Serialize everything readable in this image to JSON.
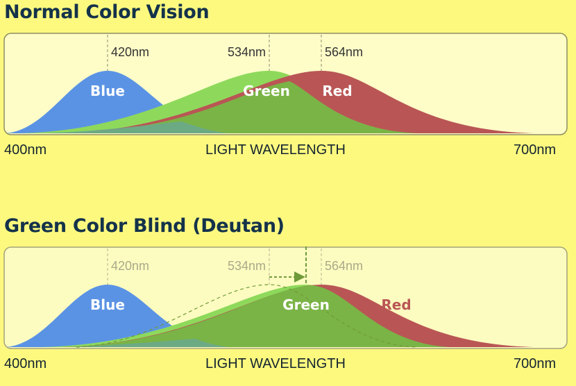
{
  "diagram": {
    "colors": {
      "background": "#fdf97f",
      "panel_fill": "#fefdc8",
      "blue": "#5b93e4",
      "green": "#8ed95b",
      "red": "#b95655",
      "overlap_green": "#7ab446",
      "title": "#14324a"
    },
    "panels": [
      {
        "title": "Normal Color Vision",
        "axis_min_label": "400nm",
        "axis_center_label": "LIGHT WAVELENGTH",
        "axis_max_label": "700nm",
        "markers": [
          {
            "label": "420nm",
            "wavelength": 420
          },
          {
            "label": "534nm",
            "wavelength": 534
          },
          {
            "label": "564nm",
            "wavelength": 564
          }
        ],
        "curves": {
          "blue": "Blue",
          "green": "Green",
          "red": "Red"
        }
      },
      {
        "title": "Green Color Blind (Deutan)",
        "axis_min_label": "400nm",
        "axis_center_label": "LIGHT WAVELENGTH",
        "axis_max_label": "700nm",
        "markers": [
          {
            "label": "420nm",
            "wavelength": 420
          },
          {
            "label": "534nm",
            "wavelength": 534
          },
          {
            "label": "564nm",
            "wavelength": 564
          }
        ],
        "curves": {
          "blue": "Blue",
          "green": "Green",
          "red": "Red"
        },
        "shift": {
          "from_wavelength": 534,
          "to_wavelength": 552
        }
      }
    ]
  }
}
